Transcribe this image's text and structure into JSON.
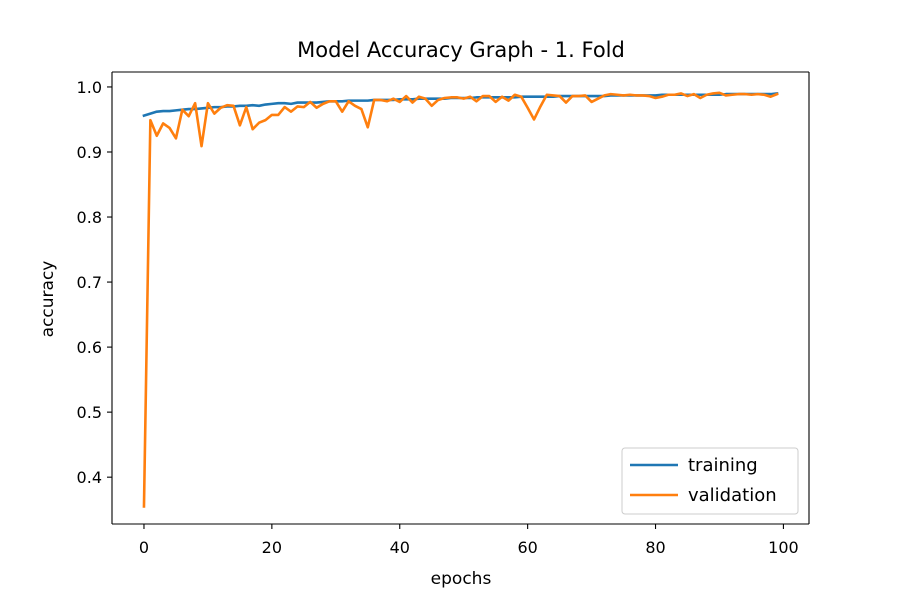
{
  "chart_data": {
    "type": "line",
    "title": "Model Accuracy Graph - 1. Fold",
    "xlabel": "epochs",
    "ylabel": "accuracy",
    "xlim": [
      -5,
      104
    ],
    "ylim": [
      0.328,
      1.023
    ],
    "xticks": [
      0,
      20,
      40,
      60,
      80,
      100
    ],
    "xtick_labels": [
      "0",
      "20",
      "40",
      "60",
      "80",
      "100"
    ],
    "yticks": [
      0.4,
      0.5,
      0.6,
      0.7,
      0.8,
      0.9,
      1.0
    ],
    "ytick_labels": [
      "0.4",
      "0.5",
      "0.6",
      "0.7",
      "0.8",
      "0.9",
      "1.0"
    ],
    "grid": false,
    "legend_position": "lower-right",
    "series": [
      {
        "name": "training",
        "color": "#1f77b4",
        "x": [
          0,
          1,
          2,
          3,
          4,
          5,
          6,
          7,
          8,
          9,
          10,
          11,
          12,
          13,
          14,
          15,
          16,
          17,
          18,
          19,
          20,
          21,
          22,
          23,
          24,
          25,
          26,
          27,
          28,
          29,
          30,
          31,
          32,
          33,
          34,
          35,
          36,
          37,
          38,
          39,
          40,
          41,
          42,
          43,
          44,
          45,
          46,
          47,
          48,
          49,
          50,
          51,
          52,
          53,
          54,
          55,
          56,
          57,
          58,
          59,
          60,
          61,
          62,
          63,
          64,
          65,
          66,
          67,
          68,
          69,
          70,
          71,
          72,
          73,
          74,
          75,
          76,
          77,
          78,
          79,
          80,
          81,
          82,
          83,
          84,
          85,
          86,
          87,
          88,
          89,
          90,
          91,
          92,
          93,
          94,
          95,
          96,
          97,
          98,
          99
        ],
        "values": [
          0.956,
          0.959,
          0.962,
          0.963,
          0.963,
          0.964,
          0.965,
          0.966,
          0.966,
          0.967,
          0.968,
          0.969,
          0.969,
          0.97,
          0.97,
          0.971,
          0.971,
          0.972,
          0.971,
          0.973,
          0.974,
          0.975,
          0.975,
          0.974,
          0.976,
          0.976,
          0.976,
          0.976,
          0.977,
          0.978,
          0.978,
          0.978,
          0.979,
          0.979,
          0.979,
          0.979,
          0.98,
          0.98,
          0.98,
          0.98,
          0.981,
          0.981,
          0.981,
          0.982,
          0.982,
          0.982,
          0.982,
          0.982,
          0.983,
          0.983,
          0.983,
          0.983,
          0.984,
          0.984,
          0.984,
          0.984,
          0.984,
          0.984,
          0.984,
          0.985,
          0.985,
          0.985,
          0.985,
          0.985,
          0.985,
          0.986,
          0.986,
          0.986,
          0.986,
          0.986,
          0.986,
          0.986,
          0.986,
          0.987,
          0.987,
          0.987,
          0.987,
          0.987,
          0.987,
          0.987,
          0.987,
          0.988,
          0.988,
          0.988,
          0.988,
          0.988,
          0.988,
          0.988,
          0.988,
          0.988,
          0.988,
          0.989,
          0.989,
          0.989,
          0.989,
          0.989,
          0.989,
          0.989,
          0.989,
          0.99
        ]
      },
      {
        "name": "validation",
        "color": "#ff7f0e",
        "x": [
          0,
          1,
          2,
          3,
          4,
          5,
          6,
          7,
          8,
          9,
          10,
          11,
          12,
          13,
          14,
          15,
          16,
          17,
          18,
          19,
          20,
          21,
          22,
          23,
          24,
          25,
          26,
          27,
          28,
          29,
          30,
          31,
          32,
          33,
          34,
          35,
          36,
          37,
          38,
          39,
          40,
          41,
          42,
          43,
          44,
          45,
          46,
          47,
          48,
          49,
          50,
          51,
          52,
          53,
          54,
          55,
          56,
          57,
          58,
          59,
          60,
          61,
          62,
          63,
          64,
          65,
          66,
          67,
          68,
          69,
          70,
          71,
          72,
          73,
          74,
          75,
          76,
          77,
          78,
          79,
          80,
          81,
          82,
          83,
          84,
          85,
          86,
          87,
          88,
          89,
          90,
          91,
          92,
          93,
          94,
          95,
          96,
          97,
          98,
          99
        ],
        "values": [
          0.355,
          0.949,
          0.925,
          0.944,
          0.937,
          0.921,
          0.965,
          0.955,
          0.975,
          0.909,
          0.975,
          0.959,
          0.968,
          0.972,
          0.971,
          0.941,
          0.969,
          0.935,
          0.945,
          0.949,
          0.957,
          0.957,
          0.969,
          0.962,
          0.97,
          0.969,
          0.977,
          0.968,
          0.974,
          0.978,
          0.978,
          0.962,
          0.978,
          0.971,
          0.966,
          0.938,
          0.98,
          0.98,
          0.978,
          0.982,
          0.977,
          0.986,
          0.976,
          0.985,
          0.982,
          0.971,
          0.98,
          0.983,
          0.984,
          0.984,
          0.982,
          0.985,
          0.978,
          0.986,
          0.986,
          0.977,
          0.985,
          0.979,
          0.988,
          0.985,
          0.968,
          0.95,
          0.97,
          0.988,
          0.987,
          0.986,
          0.976,
          0.986,
          0.986,
          0.987,
          0.977,
          0.982,
          0.987,
          0.989,
          0.988,
          0.987,
          0.988,
          0.987,
          0.987,
          0.986,
          0.983,
          0.985,
          0.988,
          0.988,
          0.99,
          0.986,
          0.989,
          0.983,
          0.988,
          0.99,
          0.991,
          0.987,
          0.988,
          0.989,
          0.989,
          0.988,
          0.989,
          0.988,
          0.985,
          0.989
        ]
      }
    ]
  }
}
